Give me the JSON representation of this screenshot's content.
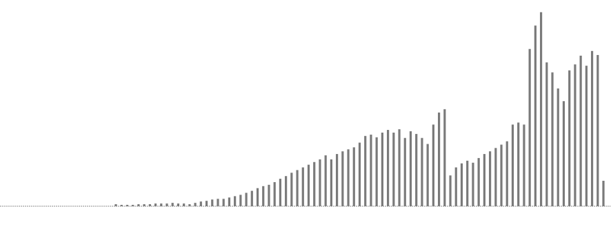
{
  "chart_data": {
    "type": "bar",
    "color": "#7a7a7a",
    "ylim": [
      0,
      300
    ],
    "values": [
      3,
      2,
      2,
      2,
      3,
      3,
      3,
      4,
      4,
      4,
      5,
      4,
      4,
      3,
      5,
      7,
      8,
      10,
      11,
      11,
      13,
      15,
      17,
      20,
      23,
      27,
      30,
      32,
      36,
      41,
      45,
      50,
      54,
      58,
      62,
      66,
      70,
      76,
      70,
      78,
      82,
      85,
      88,
      95,
      105,
      107,
      103,
      110,
      114,
      110,
      115,
      102,
      112,
      108,
      102,
      93,
      122,
      140,
      145,
      46,
      58,
      64,
      68,
      65,
      72,
      78,
      82,
      87,
      92,
      97,
      122,
      125,
      122,
      235,
      270,
      290,
      215,
      200,
      176,
      157,
      203,
      212,
      225,
      210,
      232,
      226,
      38
    ]
  }
}
